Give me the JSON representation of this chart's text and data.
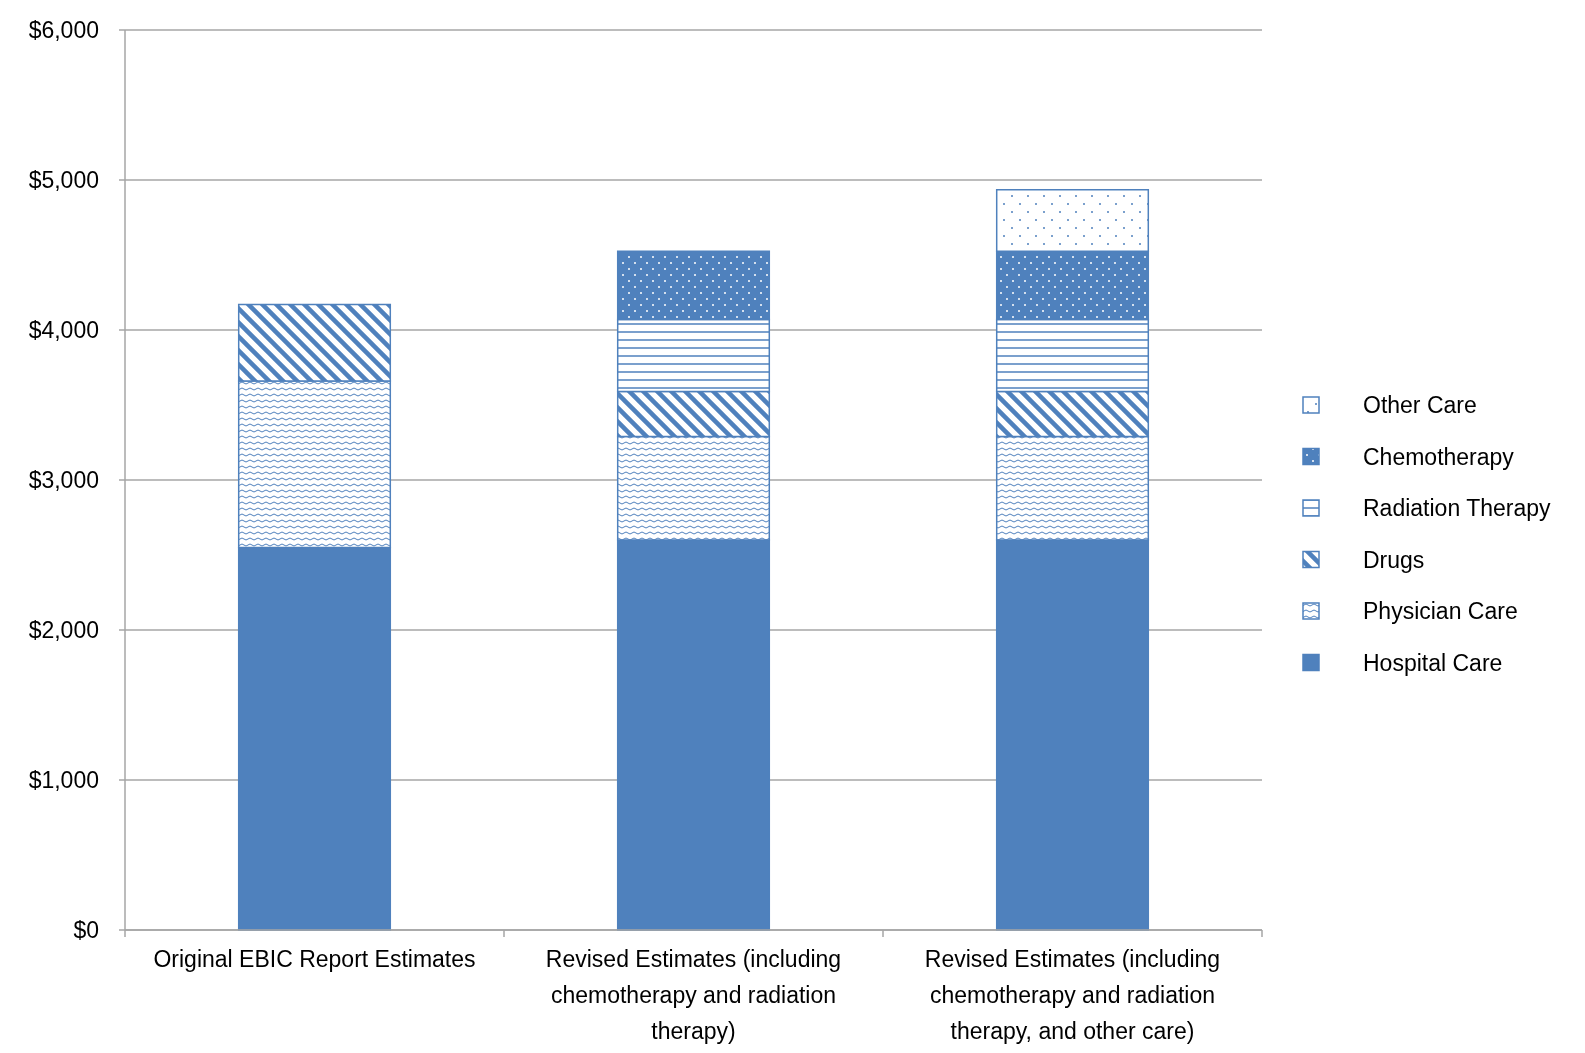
{
  "chart_data": {
    "type": "bar",
    "stacked": true,
    "categories": [
      "Original EBIC Report Estimates",
      "Revised Estimates (including chemotherapy and radiation therapy)",
      "Revised Estimates (including chemotherapy and radiation therapy, and other care)"
    ],
    "series": [
      {
        "name": "Hospital Care",
        "color": "#4f81bd",
        "values": [
          2550,
          2600,
          2600
        ]
      },
      {
        "name": "Physician Care",
        "color": "#4f81bd",
        "values": [
          1110,
          690,
          690
        ]
      },
      {
        "name": "Drugs",
        "color": "#4f81bd",
        "values": [
          510,
          300,
          300
        ]
      },
      {
        "name": "Radiation Therapy",
        "color": "#4f81bd",
        "values": [
          null,
          480,
          480
        ]
      },
      {
        "name": "Chemotherapy",
        "color": "#4f81bd",
        "values": [
          null,
          455,
          455
        ]
      },
      {
        "name": "Other Care",
        "color": "#4f81bd",
        "values": [
          null,
          null,
          410
        ]
      }
    ],
    "ylim": [
      0,
      6000
    ],
    "yticks": [
      {
        "value": 0,
        "label": "$0"
      },
      {
        "value": 1000,
        "label": "$1,000"
      },
      {
        "value": 2000,
        "label": "$2,000"
      },
      {
        "value": 3000,
        "label": "$3,000"
      },
      {
        "value": 4000,
        "label": "$4,000"
      },
      {
        "value": 5000,
        "label": "$5,000"
      },
      {
        "value": 6000,
        "label": "$6,000"
      }
    ],
    "grid": "y",
    "legend": "right"
  }
}
